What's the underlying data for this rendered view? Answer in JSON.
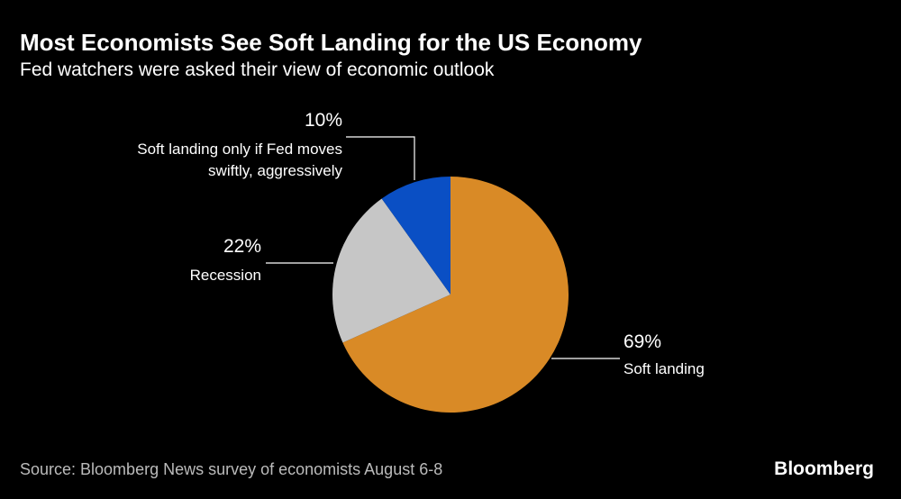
{
  "chart_data": {
    "type": "pie",
    "title": "Most Economists See Soft Landing for the US Economy",
    "subtitle": "Fed watchers were asked their view of economic outlook",
    "categories": [
      "Soft landing",
      "Recession",
      "Soft landing only if Fed moves swiftly, aggressively"
    ],
    "values": [
      69,
      22,
      10
    ],
    "value_labels": [
      "69%",
      "22%",
      "10%"
    ],
    "colors": [
      "#d98a26",
      "#c6c6c6",
      "#0a4fc4"
    ],
    "source": "Source: Bloomberg News survey of economists August 6-8",
    "brand": "Bloomberg"
  }
}
